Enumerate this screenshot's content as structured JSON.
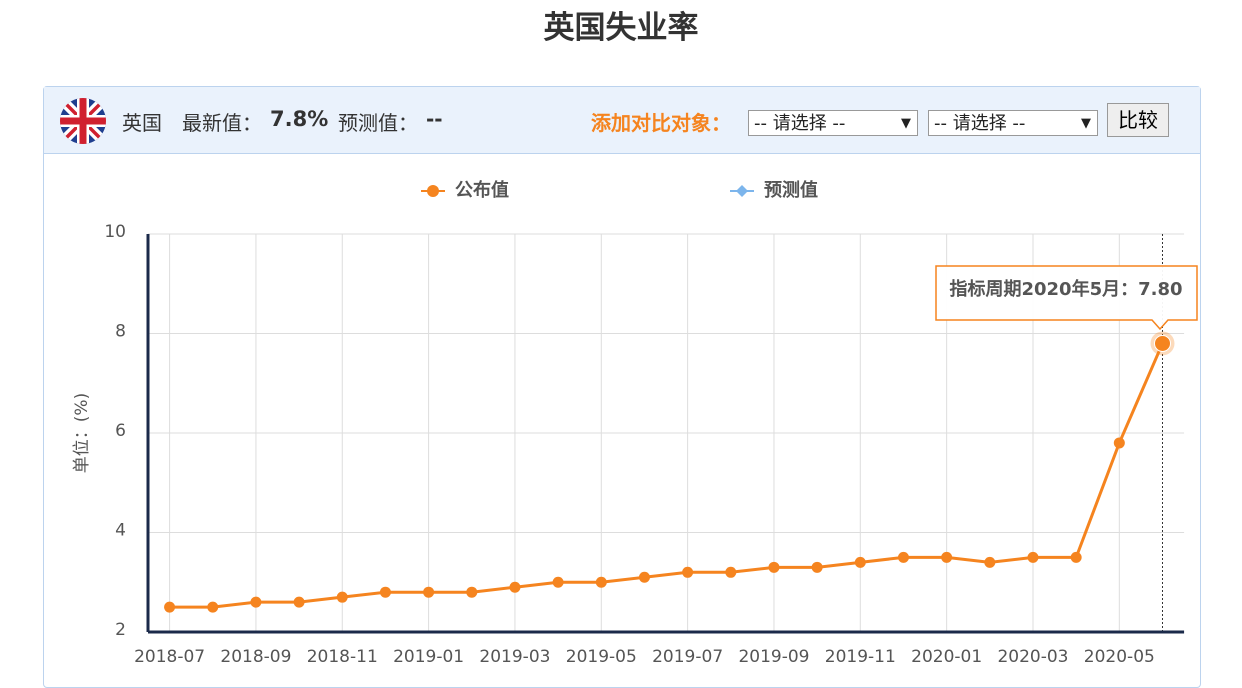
{
  "page_title": "英国失业率",
  "header": {
    "country": "英国",
    "latest_label": "最新值：",
    "latest_value": "7.8%",
    "forecast_label": "预测值：",
    "forecast_value": "--",
    "compare_label": "添加对比对象：",
    "select_1": "-- 请选择 --",
    "select_2": "-- 请选择 --",
    "compare_button": "比较"
  },
  "chart_data": {
    "type": "line",
    "y_label": "单位：(%)",
    "categories": [
      "2018-07",
      null,
      "2018-09",
      null,
      "2018-11",
      null,
      "2019-01",
      null,
      "2019-03",
      null,
      "2019-05",
      null,
      "2019-07",
      null,
      "2019-09",
      null,
      "2019-11",
      null,
      "2020-01",
      null,
      "2020-03",
      null,
      "2020-05",
      null
    ],
    "series": [
      {
        "name": "公布值",
        "color": "#f5841f",
        "values": [
          2.5,
          2.5,
          2.6,
          2.6,
          2.7,
          2.8,
          2.8,
          2.8,
          2.9,
          3.0,
          3.0,
          3.1,
          3.2,
          3.2,
          3.3,
          3.3,
          3.4,
          3.5,
          3.5,
          3.4,
          3.5,
          3.5,
          5.8,
          7.8
        ]
      },
      {
        "name": "预测值",
        "color": "#7cb5ec",
        "values": [
          null,
          null,
          null,
          null,
          null,
          null,
          null,
          null,
          null,
          null,
          null,
          null,
          null,
          null,
          null,
          null,
          null,
          null,
          null,
          null,
          null,
          null,
          null,
          null
        ]
      }
    ],
    "ylim": [
      2,
      10
    ],
    "yticks": [
      2,
      4,
      6,
      8,
      10
    ],
    "grid": true,
    "tooltip": "指标周期2020年5月：7.80"
  }
}
